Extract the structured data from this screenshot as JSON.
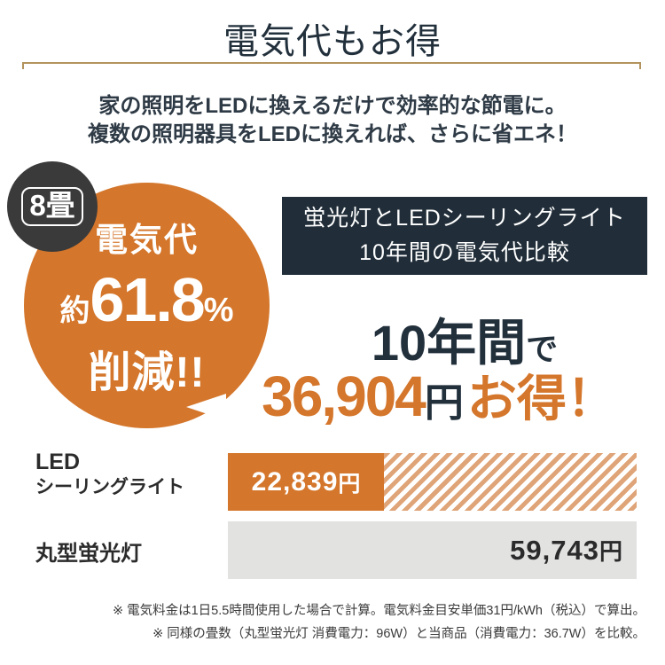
{
  "colors": {
    "accent_orange": "#d4762b",
    "stripe_orange": "#dfa478",
    "dark_navy": "#22303c",
    "box_navy": "#212e39",
    "badge_charcoal": "#3a3a3a",
    "bar_gray": "#e2e2e1",
    "gold_line": "#b3935d"
  },
  "header": {
    "title": "電気代もお得",
    "subtitle_line1": "家の照明をLEDに換えるだけで効率的な節電に。",
    "subtitle_line2": "複数の照明器具をLEDに換えれば、さらに省エネ！"
  },
  "badge": {
    "label": "8畳"
  },
  "savings_bubble": {
    "line1": "電気代",
    "approx_prefix": "約",
    "percent": "61.8",
    "percent_sign": "%",
    "line3": "削減!!"
  },
  "comparison_box": {
    "line1": "蛍光灯とLEDシーリングライト",
    "line2": "10年間の電気代比較"
  },
  "savings_summary": {
    "duration": "10年間",
    "duration_suffix": "で",
    "amount": "36,904",
    "unit": "円",
    "suffix": "お得！"
  },
  "chart": {
    "rows": [
      {
        "label_lines": [
          "LED",
          "シーリングライト"
        ],
        "value": "22,839",
        "unit": "円"
      },
      {
        "label_lines": [
          "丸型蛍光灯"
        ],
        "value": "59,743",
        "unit": "円"
      }
    ]
  },
  "chart_data": {
    "type": "bar",
    "orientation": "horizontal",
    "title": "蛍光灯とLEDシーリングライト 10年間の電気代比較",
    "categories": [
      "LEDシーリングライト",
      "丸型蛍光灯"
    ],
    "values": [
      22839,
      59743
    ],
    "unit": "円",
    "period_years": 10,
    "savings_yen": 36904,
    "savings_percent": 61.8,
    "room_size": "8畳",
    "legend_position": "none",
    "grid": false,
    "note": "LED bar: solid portion = LED cost, hatched portion = savings vs 丸型蛍光灯 full gray bar"
  },
  "footnotes": {
    "line1": "※ 電気料金は1日5.5時間使用した場合で計算。電気料金目安単価31円/kWh（税込）で算出。",
    "line2": "※ 同様の畳数（丸型蛍光灯 消費電力：96W）と当商品（消費電力：36.7W）を比較。"
  }
}
